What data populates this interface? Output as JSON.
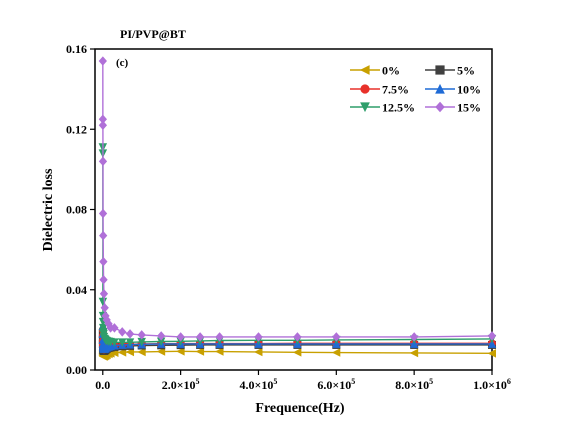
{
  "chart_data": {
    "type": "line",
    "title": "PI/PVP@BT",
    "panel_label": "(c)",
    "xlabel": "Frequence(Hz)",
    "ylabel": "Dielectric loss",
    "xlim": [
      -20000,
      1000000
    ],
    "ylim": [
      0,
      0.16
    ],
    "xticks": [
      {
        "value": 0,
        "label": "0.0"
      },
      {
        "value": 200000,
        "label": "2.0×10",
        "exp": "5"
      },
      {
        "value": 400000,
        "label": "4.0×10",
        "exp": "5"
      },
      {
        "value": 600000,
        "label": "6.0×10",
        "exp": "5"
      },
      {
        "value": 800000,
        "label": "8.0×10",
        "exp": "5"
      },
      {
        "value": 1000000,
        "label": "1.0×10",
        "exp": "6"
      }
    ],
    "yticks": [
      {
        "value": 0,
        "label": "0.00"
      },
      {
        "value": 0.04,
        "label": "0.04"
      },
      {
        "value": 0.08,
        "label": "0.08"
      },
      {
        "value": 0.12,
        "label": "0.12"
      },
      {
        "value": 0.16,
        "label": "0.16"
      }
    ],
    "grid": false,
    "legend_position": "top-right",
    "x": [
      100,
      200,
      300,
      500,
      700,
      1000,
      1500,
      2000,
      3000,
      5000,
      7000,
      10000,
      15000,
      20000,
      30000,
      50000,
      70000,
      100000,
      150000,
      200000,
      250000,
      300000,
      400000,
      500000,
      600000,
      800000,
      1000000
    ],
    "series": [
      {
        "name": "0%",
        "color": "#c8a000",
        "marker": "triangle-left",
        "values": [
          0.0095,
          0.0085,
          0.008,
          0.0075,
          0.0072,
          0.007,
          0.0068,
          0.0068,
          0.0068,
          0.007,
          0.0072,
          0.0075,
          0.008,
          0.0083,
          0.0086,
          0.0088,
          0.009,
          0.009,
          0.0092,
          0.0093,
          0.0092,
          0.0092,
          0.009,
          0.0088,
          0.0087,
          0.0085,
          0.0083
        ]
      },
      {
        "name": "5%",
        "color": "#404040",
        "marker": "square",
        "values": [
          0.018,
          0.015,
          0.013,
          0.0115,
          0.0108,
          0.0102,
          0.0098,
          0.0096,
          0.0095,
          0.0097,
          0.01,
          0.0105,
          0.011,
          0.0112,
          0.0115,
          0.0118,
          0.012,
          0.0122,
          0.0123,
          0.0124,
          0.0125,
          0.0125,
          0.0125,
          0.0125,
          0.0125,
          0.0125,
          0.0125
        ]
      },
      {
        "name": "7.5%",
        "color": "#e8312a",
        "marker": "circle",
        "values": [
          0.02,
          0.017,
          0.0145,
          0.0128,
          0.012,
          0.0113,
          0.0108,
          0.0105,
          0.0103,
          0.0105,
          0.0108,
          0.0112,
          0.0117,
          0.012,
          0.0123,
          0.0126,
          0.0128,
          0.013,
          0.0131,
          0.0132,
          0.0132,
          0.0132,
          0.0132,
          0.0133,
          0.0133,
          0.0133,
          0.0133
        ]
      },
      {
        "name": "10%",
        "color": "#1f6bd6",
        "marker": "triangle-up",
        "values": [
          0.022,
          0.018,
          0.015,
          0.013,
          0.0122,
          0.0115,
          0.011,
          0.0107,
          0.0105,
          0.0106,
          0.0108,
          0.0112,
          0.0116,
          0.0119,
          0.0122,
          0.0125,
          0.0127,
          0.0128,
          0.013,
          0.013,
          0.013,
          0.013,
          0.013,
          0.013,
          0.013,
          0.013,
          0.013
        ]
      },
      {
        "name": "12.5%",
        "color": "#2e9e6a",
        "marker": "triangle-down",
        "values": [
          0.111,
          0.108,
          0.034,
          0.027,
          0.024,
          0.021,
          0.019,
          0.018,
          0.0165,
          0.0155,
          0.015,
          0.0145,
          0.0142,
          0.014,
          0.0138,
          0.0138,
          0.0138,
          0.014,
          0.0142,
          0.0143,
          0.0145,
          0.0147,
          0.0148,
          0.0148,
          0.015,
          0.0152,
          0.0155
        ]
      },
      {
        "name": "15%",
        "color": "#b070d8",
        "marker": "diamond",
        "values": [
          0.154,
          0.125,
          0.122,
          0.104,
          0.078,
          0.067,
          0.054,
          0.045,
          0.038,
          0.031,
          0.027,
          0.025,
          0.023,
          0.021,
          0.021,
          0.019,
          0.018,
          0.0175,
          0.017,
          0.0165,
          0.0165,
          0.0165,
          0.0165,
          0.0165,
          0.0165,
          0.0165,
          0.017
        ]
      }
    ]
  }
}
